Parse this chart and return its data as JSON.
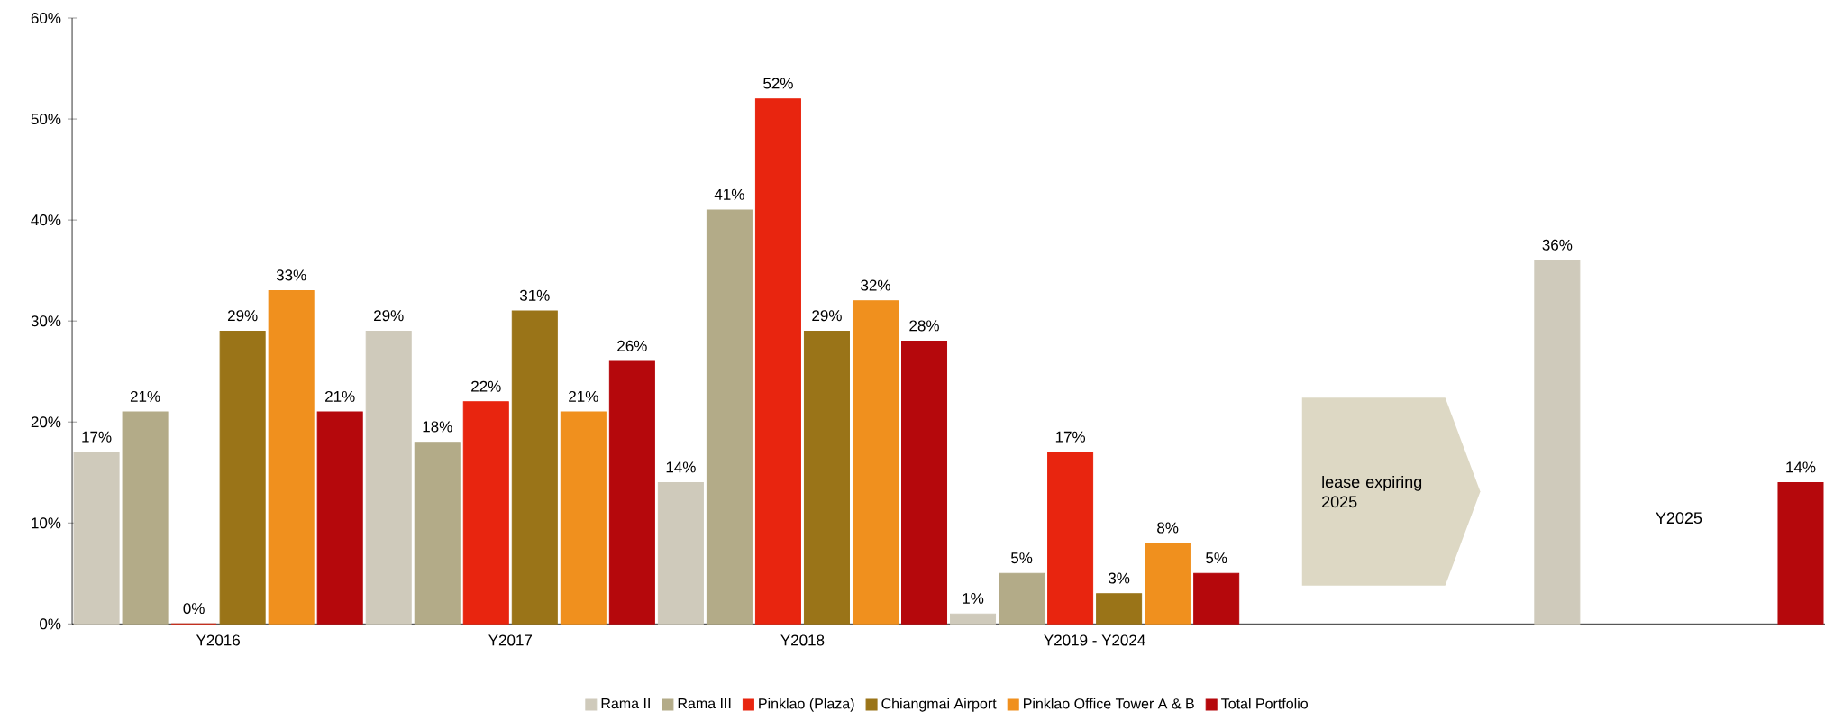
{
  "chart_data": {
    "type": "bar",
    "categories": [
      "Y2016",
      "Y2017",
      "Y2018",
      "Y2019 - Y2024",
      null,
      null
    ],
    "series": [
      {
        "name": "Rama II",
        "color": "#cfcabb",
        "values": [
          17,
          29,
          14,
          1,
          null,
          36
        ],
        "value_labels": [
          "17%",
          "29%",
          "14%",
          "1%",
          null,
          "36%"
        ]
      },
      {
        "name": "Rama III",
        "color": "#b3ab88",
        "values": [
          21,
          18,
          41,
          5,
          null,
          null
        ],
        "value_labels": [
          "21%",
          "18%",
          "41%",
          "5%",
          null,
          null
        ]
      },
      {
        "name": "Pinklao (Plaza)",
        "color": "#e8250f",
        "values": [
          0,
          22,
          52,
          17,
          null,
          null
        ],
        "value_labels": [
          "0%",
          "22%",
          "52%",
          "17%",
          null,
          null
        ]
      },
      {
        "name": "Chiangmai Airport",
        "color": "#9a7418",
        "values": [
          29,
          31,
          29,
          3,
          null,
          null
        ],
        "value_labels": [
          "29%",
          "31%",
          "29%",
          "3%",
          null,
          null
        ]
      },
      {
        "name": "Pinklao Office Tower A & B",
        "color": "#f0901e",
        "values": [
          33,
          21,
          32,
          8,
          null,
          null
        ],
        "value_labels": [
          "33%",
          "21%",
          "32%",
          "8%",
          null,
          null
        ]
      },
      {
        "name": "Total Portfolio",
        "color": "#b5080c",
        "values": [
          21,
          26,
          28,
          5,
          null,
          14
        ],
        "value_labels": [
          "21%",
          "26%",
          "28%",
          "5%",
          null,
          "14%"
        ]
      }
    ],
    "ylim": [
      0,
      60
    ],
    "yticks": [
      {
        "value": 0,
        "label": "0%"
      },
      {
        "value": 10,
        "label": "10%"
      },
      {
        "value": 20,
        "label": "20%"
      },
      {
        "value": 30,
        "label": "30%"
      },
      {
        "value": 40,
        "label": "40%"
      },
      {
        "value": 50,
        "label": "50%"
      },
      {
        "value": 60,
        "label": "60%"
      }
    ],
    "annotations": [
      "lease expiring 2025",
      "Y2025"
    ],
    "grid": false,
    "legend": "bottom"
  }
}
